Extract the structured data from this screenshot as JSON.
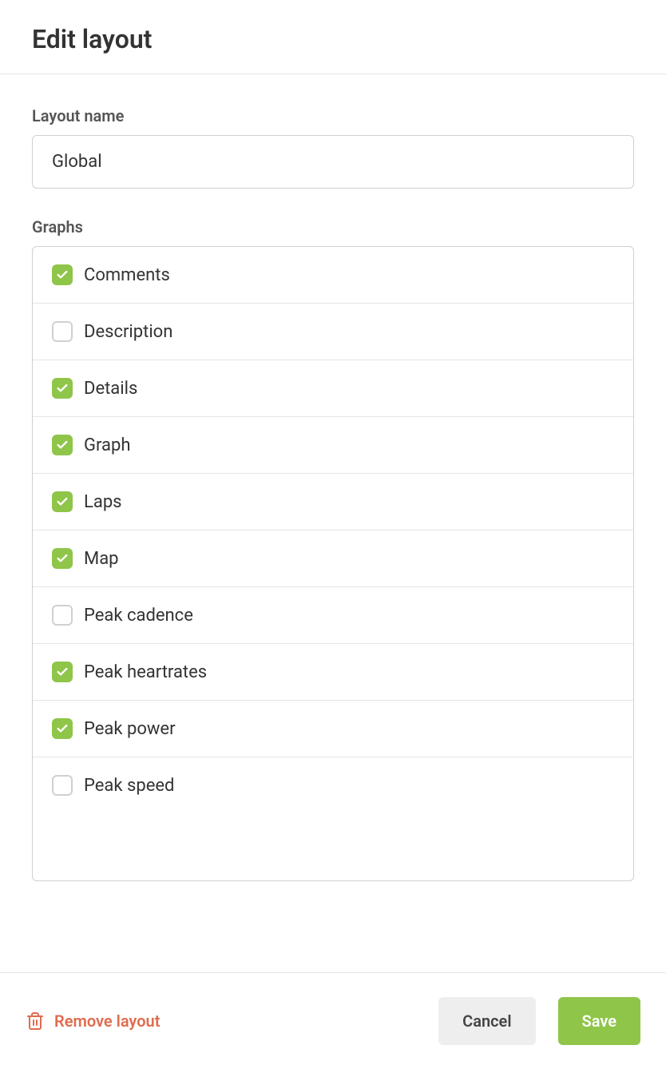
{
  "header": {
    "title": "Edit layout"
  },
  "form": {
    "layout_name_label": "Layout name",
    "layout_name_value": "Global",
    "graphs_label": "Graphs"
  },
  "graphs": [
    {
      "label": "Comments",
      "checked": true
    },
    {
      "label": "Description",
      "checked": false
    },
    {
      "label": "Details",
      "checked": true
    },
    {
      "label": "Graph",
      "checked": true
    },
    {
      "label": "Laps",
      "checked": true
    },
    {
      "label": "Map",
      "checked": true
    },
    {
      "label": "Peak cadence",
      "checked": false
    },
    {
      "label": "Peak heartrates",
      "checked": true
    },
    {
      "label": "Peak power",
      "checked": true
    },
    {
      "label": "Peak speed",
      "checked": false
    }
  ],
  "footer": {
    "remove_label": "Remove layout",
    "cancel_label": "Cancel",
    "save_label": "Save"
  },
  "colors": {
    "accent": "#8fc549",
    "danger": "#e06c4f",
    "border": "#d0d0d0",
    "divider": "#e5e5e5",
    "text": "#333333",
    "label": "#555555",
    "cancel_bg": "#eeeeee"
  }
}
